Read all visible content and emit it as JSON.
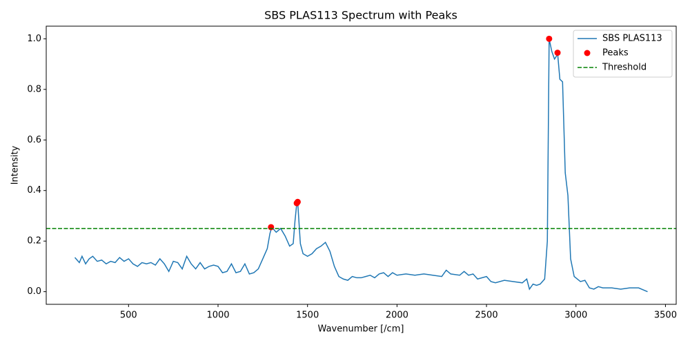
{
  "chart_data": {
    "type": "line",
    "title": "SBS PLAS113 Spectrum with Peaks",
    "xlabel": "Wavenumber [/cm]",
    "ylabel": "Intensity",
    "xlim": [
      40,
      3560
    ],
    "ylim": [
      -0.05,
      1.05
    ],
    "xticks": [
      500,
      1000,
      1500,
      2000,
      2500,
      3000,
      3500
    ],
    "yticks": [
      {
        "value": 0,
        "label": "0.0"
      },
      0.2,
      0.4,
      0.6,
      0.8,
      {
        "value": 1,
        "label": "1.0"
      }
    ],
    "legend": "upper right",
    "series": [
      {
        "name": "SBS PLAS113",
        "type": "line",
        "color": "#1f77b4",
        "x": [
          200,
          225,
          240,
          260,
          280,
          300,
          325,
          350,
          375,
          400,
          425,
          450,
          475,
          500,
          525,
          550,
          575,
          600,
          625,
          650,
          675,
          700,
          725,
          750,
          775,
          800,
          825,
          850,
          875,
          900,
          925,
          950,
          975,
          1000,
          1025,
          1050,
          1075,
          1100,
          1125,
          1150,
          1175,
          1200,
          1225,
          1250,
          1275,
          1290,
          1300,
          1325,
          1350,
          1375,
          1400,
          1420,
          1430,
          1440,
          1445,
          1460,
          1475,
          1500,
          1525,
          1550,
          1575,
          1600,
          1625,
          1650,
          1675,
          1700,
          1725,
          1750,
          1775,
          1800,
          1825,
          1850,
          1875,
          1900,
          1925,
          1950,
          1975,
          2000,
          2050,
          2100,
          2150,
          2200,
          2250,
          2275,
          2300,
          2350,
          2375,
          2400,
          2425,
          2450,
          2500,
          2525,
          2550,
          2600,
          2650,
          2700,
          2725,
          2740,
          2760,
          2780,
          2800,
          2825,
          2840,
          2850,
          2865,
          2880,
          2890,
          2897,
          2910,
          2925,
          2940,
          2955,
          2970,
          2990,
          3025,
          3050,
          3075,
          3100,
          3125,
          3150,
          3200,
          3250,
          3300,
          3350,
          3400
        ],
        "values": [
          0.135,
          0.115,
          0.14,
          0.11,
          0.13,
          0.14,
          0.12,
          0.125,
          0.11,
          0.12,
          0.115,
          0.135,
          0.12,
          0.13,
          0.11,
          0.1,
          0.115,
          0.11,
          0.115,
          0.105,
          0.13,
          0.11,
          0.08,
          0.12,
          0.115,
          0.09,
          0.14,
          0.11,
          0.09,
          0.115,
          0.09,
          0.1,
          0.105,
          0.1,
          0.075,
          0.08,
          0.11,
          0.075,
          0.08,
          0.11,
          0.07,
          0.075,
          0.09,
          0.13,
          0.17,
          0.23,
          0.255,
          0.235,
          0.25,
          0.22,
          0.18,
          0.19,
          0.28,
          0.35,
          0.355,
          0.19,
          0.15,
          0.14,
          0.15,
          0.17,
          0.18,
          0.195,
          0.16,
          0.1,
          0.06,
          0.05,
          0.045,
          0.06,
          0.055,
          0.055,
          0.06,
          0.065,
          0.055,
          0.07,
          0.075,
          0.06,
          0.075,
          0.065,
          0.07,
          0.065,
          0.07,
          0.065,
          0.06,
          0.085,
          0.07,
          0.065,
          0.08,
          0.065,
          0.07,
          0.05,
          0.06,
          0.04,
          0.035,
          0.045,
          0.04,
          0.035,
          0.05,
          0.01,
          0.03,
          0.025,
          0.03,
          0.05,
          0.2,
          1.0,
          0.95,
          0.92,
          0.93,
          0.945,
          0.84,
          0.83,
          0.47,
          0.38,
          0.13,
          0.06,
          0.04,
          0.045,
          0.015,
          0.01,
          0.02,
          0.015,
          0.015,
          0.01,
          0.015,
          0.015,
          0.0
        ]
      },
      {
        "name": "Peaks",
        "type": "scatter",
        "color": "#ff0000",
        "x": [
          1296,
          1440,
          1445,
          2850,
          2897
        ],
        "values": [
          0.255,
          0.35,
          0.355,
          1.0,
          0.945
        ]
      },
      {
        "name": "Threshold",
        "type": "hline",
        "color": "#008000",
        "dash": true,
        "values": [
          0.25
        ]
      }
    ]
  }
}
